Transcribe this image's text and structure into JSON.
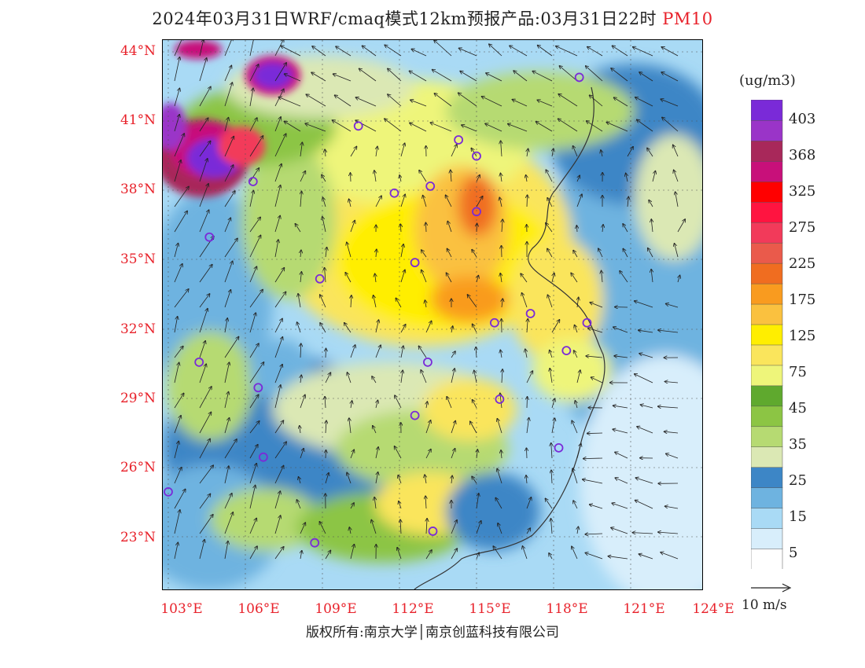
{
  "title": {
    "main": "2024年03月31日WRF/cmaq模式12km预报产品:03月31日22时",
    "pollutant": "PM10"
  },
  "axes": {
    "lat_labels": [
      "44°N",
      "41°N",
      "38°N",
      "35°N",
      "32°N",
      "29°N",
      "26°N",
      "23°N"
    ],
    "lon_labels": [
      "103°E",
      "106°E",
      "109°E",
      "112°E",
      "115°E",
      "118°E",
      "121°E",
      "124°E"
    ]
  },
  "colorbar": {
    "unit": "(ug/m3)",
    "labels": [
      "403",
      "368",
      "325",
      "275",
      "225",
      "175",
      "125",
      "75",
      "45",
      "35",
      "25",
      "15",
      "5"
    ],
    "colors": [
      "#ffffff",
      "#d8eefb",
      "#a9daf5",
      "#6eb3e0",
      "#3d86c6",
      "#dbe8b4",
      "#b6da72",
      "#8cc544",
      "#5fa92e",
      "#eef57a",
      "#fae55c",
      "#ffee00",
      "#fac13f",
      "#f99b1f",
      "#f06d20",
      "#ea5a4b",
      "#f23a5a",
      "#ff1440",
      "#ff0000",
      "#c8107a",
      "#a8285a",
      "#9a34c8",
      "#7a2ad8"
    ]
  },
  "wind_reference": {
    "label": "10 m/s"
  },
  "footer": {
    "copyright": "版权所有:南京大学│南京创蓝科技有限公司"
  },
  "colors": {
    "accent_red": "#e8222b",
    "city_marker": "#7a2ad8"
  },
  "city_markers": [
    {
      "lon": 119.0,
      "lat": 42.9
    },
    {
      "lon": 110.4,
      "lat": 40.8
    },
    {
      "lon": 114.3,
      "lat": 40.2
    },
    {
      "lon": 115.0,
      "lat": 39.5
    },
    {
      "lon": 106.3,
      "lat": 38.4
    },
    {
      "lon": 113.2,
      "lat": 38.2
    },
    {
      "lon": 111.8,
      "lat": 37.9
    },
    {
      "lon": 115.0,
      "lat": 37.1
    },
    {
      "lon": 104.6,
      "lat": 36.0
    },
    {
      "lon": 112.6,
      "lat": 34.9
    },
    {
      "lon": 108.9,
      "lat": 34.2
    },
    {
      "lon": 115.7,
      "lat": 32.3
    },
    {
      "lon": 117.1,
      "lat": 32.7
    },
    {
      "lon": 119.3,
      "lat": 32.3
    },
    {
      "lon": 118.5,
      "lat": 31.1
    },
    {
      "lon": 104.2,
      "lat": 30.6
    },
    {
      "lon": 113.1,
      "lat": 30.6
    },
    {
      "lon": 106.5,
      "lat": 29.5
    },
    {
      "lon": 115.9,
      "lat": 29.0
    },
    {
      "lon": 112.6,
      "lat": 28.3
    },
    {
      "lon": 106.7,
      "lat": 26.5
    },
    {
      "lon": 118.2,
      "lat": 26.9
    },
    {
      "lon": 103.0,
      "lat": 25.0
    },
    {
      "lon": 113.3,
      "lat": 23.3
    },
    {
      "lon": 108.7,
      "lat": 22.8
    }
  ]
}
